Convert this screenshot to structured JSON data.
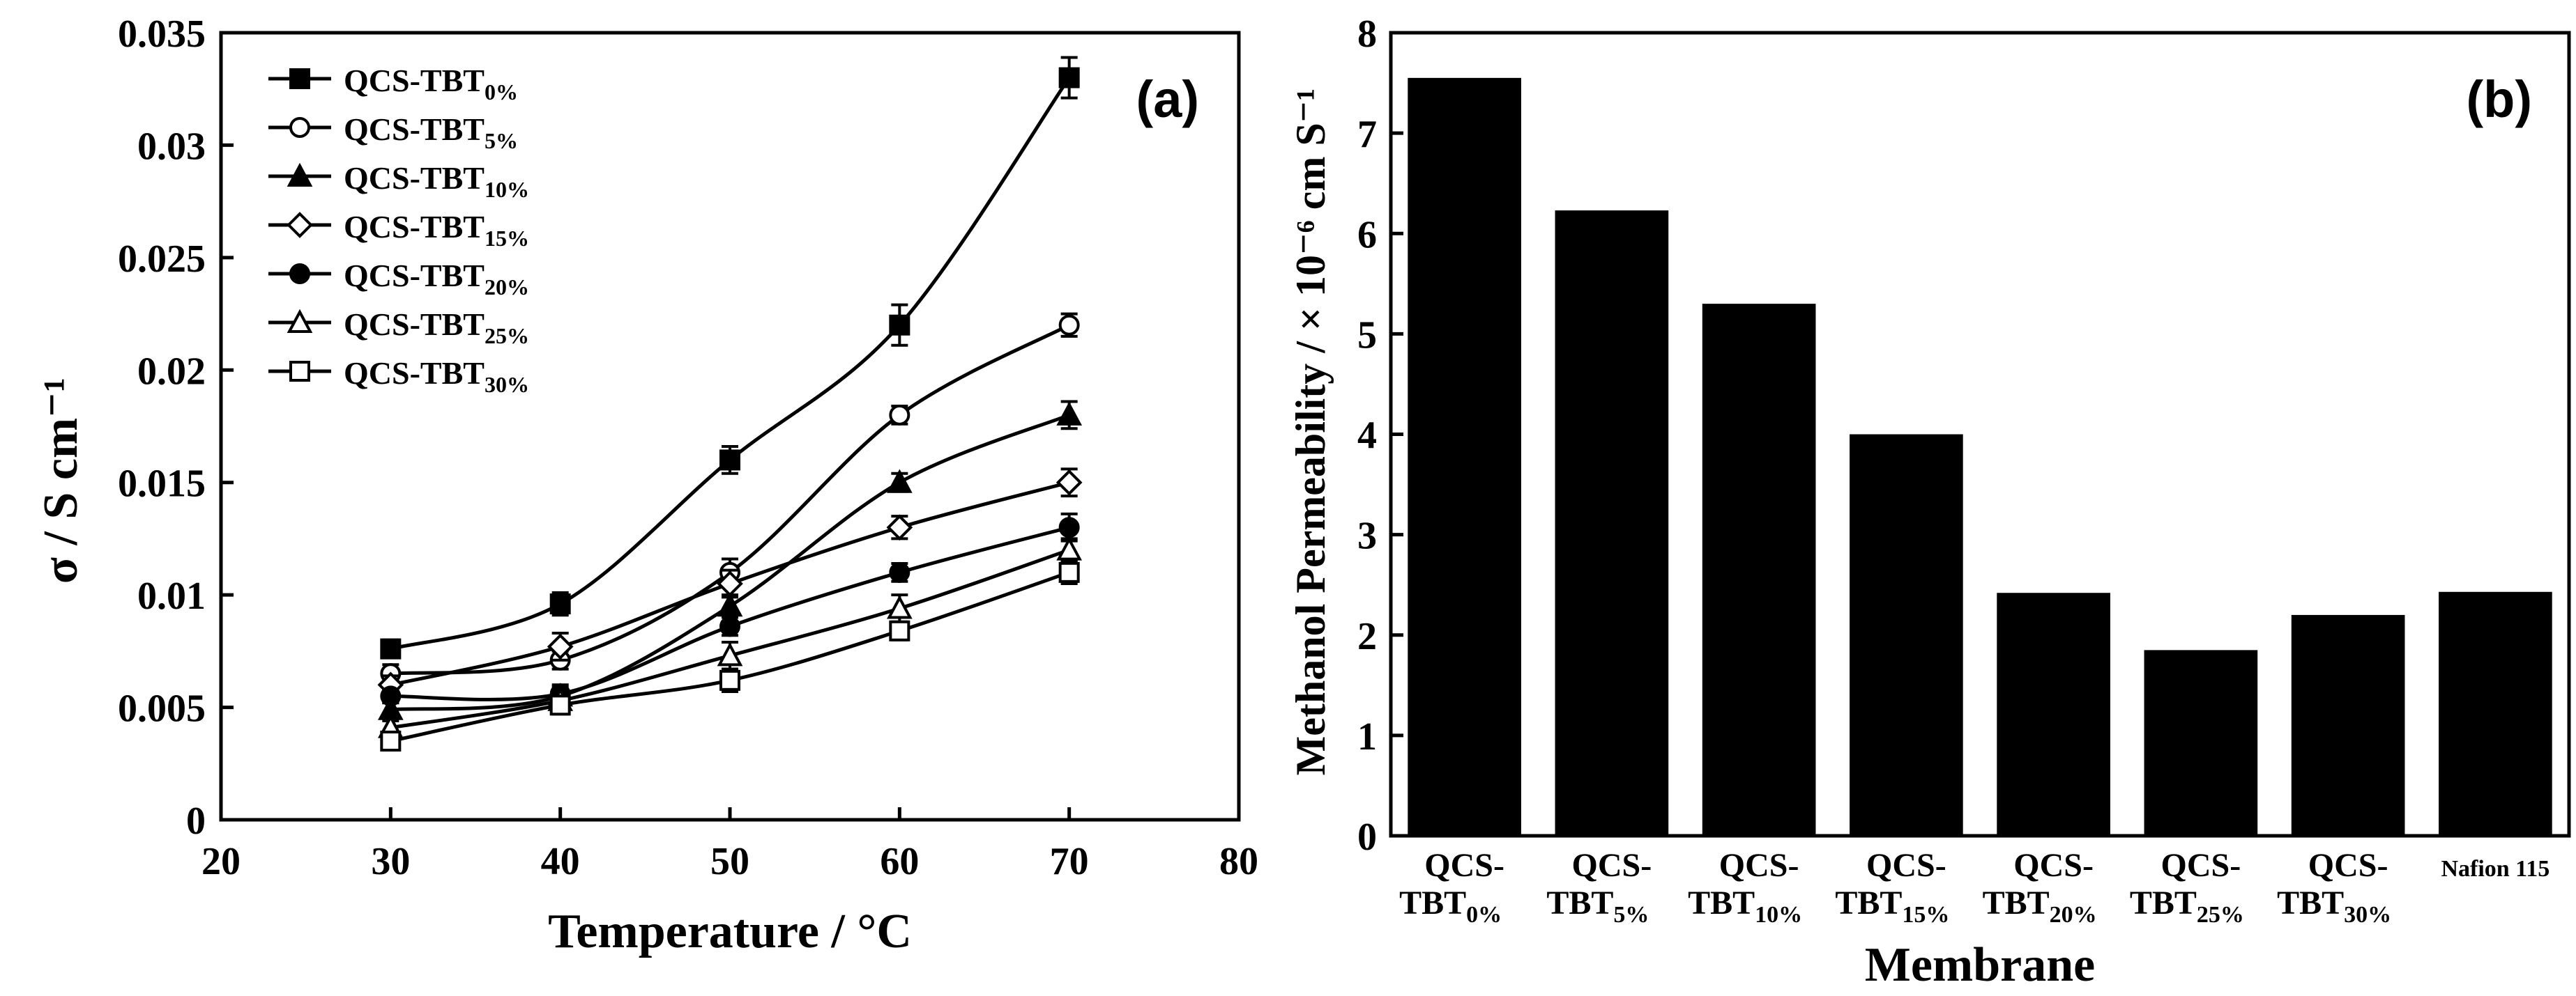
{
  "chart_data": [
    {
      "panel": "a",
      "type": "line",
      "panel_label": "(a)",
      "xlabel": "Temperature / °C",
      "ylabel": "σ / S cm⁻¹",
      "xlim": [
        20,
        80
      ],
      "ylim": [
        0,
        0.035
      ],
      "x_ticks": [
        "20",
        "30",
        "40",
        "50",
        "60",
        "70",
        "80"
      ],
      "y_ticks": [
        "0",
        "0.005",
        "0.01",
        "0.015",
        "0.02",
        "0.025",
        "0.03",
        "0.035"
      ],
      "x": [
        30,
        40,
        50,
        60,
        70
      ],
      "series": [
        {
          "name": "QCS-TBT",
          "sub": "0%",
          "marker": "square-filled",
          "values": [
            0.0076,
            0.0096,
            0.016,
            0.022,
            0.033
          ],
          "err": [
            0.0004,
            0.0005,
            0.0006,
            0.0009,
            0.0009
          ]
        },
        {
          "name": "QCS-TBT",
          "sub": "5%",
          "marker": "circle-open",
          "values": [
            0.0065,
            0.0071,
            0.011,
            0.018,
            0.022
          ],
          "err": [
            0.0004,
            0.0004,
            0.0006,
            0.0004,
            0.0005
          ]
        },
        {
          "name": "QCS-TBT",
          "sub": "10%",
          "marker": "triangle-filled",
          "values": [
            0.0049,
            0.0055,
            0.0095,
            0.015,
            0.018
          ],
          "err": [
            0.0003,
            0.0004,
            0.0005,
            0.0004,
            0.0006
          ]
        },
        {
          "name": "QCS-TBT",
          "sub": "15%",
          "marker": "diamond-open",
          "values": [
            0.006,
            0.0077,
            0.0105,
            0.013,
            0.015
          ],
          "err": [
            0.0004,
            0.0006,
            0.0006,
            0.0005,
            0.0006
          ]
        },
        {
          "name": "QCS-TBT",
          "sub": "20%",
          "marker": "circle-filled",
          "values": [
            0.0055,
            0.0056,
            0.0086,
            0.011,
            0.013
          ],
          "err": [
            0.0003,
            0.0004,
            0.0004,
            0.0004,
            0.0006
          ]
        },
        {
          "name": "QCS-TBT",
          "sub": "25%",
          "marker": "triangle-open",
          "values": [
            0.0041,
            0.0053,
            0.0073,
            0.0094,
            0.012
          ],
          "err": [
            0.0003,
            0.0004,
            0.0006,
            0.0006,
            0.0005
          ]
        },
        {
          "name": "QCS-TBT",
          "sub": "30%",
          "marker": "square-open",
          "values": [
            0.0035,
            0.0051,
            0.0062,
            0.0084,
            0.011
          ],
          "err": [
            0.0003,
            0.0004,
            0.0005,
            0.0004,
            0.0005
          ]
        }
      ]
    },
    {
      "panel": "b",
      "type": "bar",
      "panel_label": "(b)",
      "xlabel": "Membrane",
      "ylabel": "Methanol Permeability / × 10⁻⁶ cm S⁻¹",
      "ylim": [
        0,
        8
      ],
      "y_ticks": [
        "0",
        "1",
        "2",
        "3",
        "4",
        "5",
        "6",
        "7",
        "8"
      ],
      "categories": [
        {
          "name": "QCS-",
          "name2": "TBT",
          "sub": "0%"
        },
        {
          "name": "QCS-",
          "name2": "TBT",
          "sub": "5%"
        },
        {
          "name": "QCS-",
          "name2": "TBT",
          "sub": "10%"
        },
        {
          "name": "QCS-",
          "name2": "TBT",
          "sub": "15%"
        },
        {
          "name": "QCS-",
          "name2": "TBT",
          "sub": "20%"
        },
        {
          "name": "QCS-",
          "name2": "TBT",
          "sub": "25%"
        },
        {
          "name": "QCS-",
          "name2": "TBT",
          "sub": "30%"
        },
        {
          "name": "Nafion 115",
          "name2": "",
          "sub": ""
        }
      ],
      "values": [
        7.55,
        6.23,
        5.3,
        4.0,
        2.42,
        1.85,
        2.2,
        2.43
      ],
      "bar_color": "#000000"
    }
  ]
}
